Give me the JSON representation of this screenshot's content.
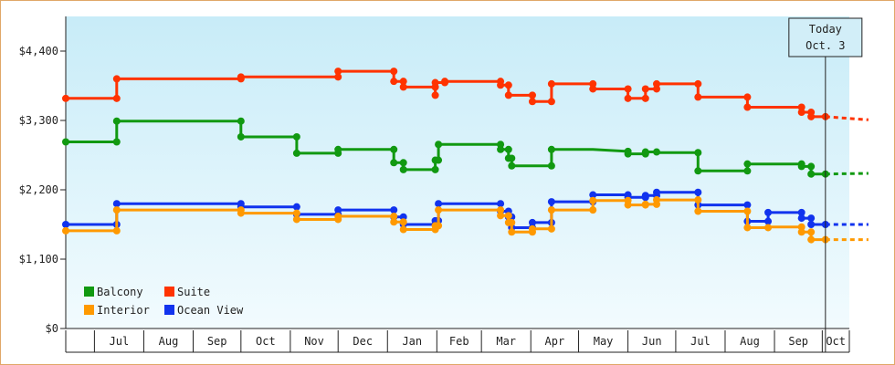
{
  "chart_data": {
    "type": "line",
    "title": "",
    "xlabel": "",
    "ylabel": "",
    "ylim": [
      0,
      4950
    ],
    "y_ticks": [
      "$0",
      "$1,100",
      "$2,200",
      "$3,300",
      "$4,400"
    ],
    "y_tick_values": [
      0,
      1100,
      2200,
      3300,
      4400
    ],
    "x_start": "2020-06-13",
    "x_end": "2021-10-18",
    "month_labels": [
      {
        "label": "Jul",
        "start": "2020-07-01",
        "end": "2020-08-01"
      },
      {
        "label": "Aug",
        "start": "2020-08-01",
        "end": "2020-09-01"
      },
      {
        "label": "Sep",
        "start": "2020-09-01",
        "end": "2020-10-01"
      },
      {
        "label": "Oct",
        "start": "2020-10-01",
        "end": "2020-11-01"
      },
      {
        "label": "Nov",
        "start": "2020-11-01",
        "end": "2020-12-01"
      },
      {
        "label": "Dec",
        "start": "2020-12-01",
        "end": "2021-01-01"
      },
      {
        "label": "Jan",
        "start": "2021-01-01",
        "end": "2021-02-01"
      },
      {
        "label": "Feb",
        "start": "2021-02-01",
        "end": "2021-03-01"
      },
      {
        "label": "Mar",
        "start": "2021-03-01",
        "end": "2021-04-01"
      },
      {
        "label": "Apr",
        "start": "2021-04-01",
        "end": "2021-05-01"
      },
      {
        "label": "May",
        "start": "2021-05-01",
        "end": "2021-06-01"
      },
      {
        "label": "Jun",
        "start": "2021-06-01",
        "end": "2021-07-01"
      },
      {
        "label": "Jul",
        "start": "2021-07-01",
        "end": "2021-08-01"
      },
      {
        "label": "Aug",
        "start": "2021-08-01",
        "end": "2021-09-01"
      },
      {
        "label": "Sep",
        "start": "2021-09-01",
        "end": "2021-10-01"
      },
      {
        "label": "Oct",
        "start": "2021-10-01",
        "end": "2021-11-01"
      }
    ],
    "today": {
      "line1": "Today",
      "line2": "Oct. 3",
      "date": "2021-10-03",
      "end": "2021-10-30"
    },
    "grid": false,
    "legend": "bottom-left",
    "series": [
      {
        "name": "Suite",
        "color": "#ff3300",
        "points": [
          [
            "2020-06-13",
            3650
          ],
          [
            "2020-07-15",
            3650
          ],
          [
            "2020-07-15",
            3960
          ],
          [
            "2020-10-01",
            3960
          ],
          [
            "2020-10-01",
            3990
          ],
          [
            "2020-10-27",
            3990
          ],
          [
            "2020-11-05",
            3990
          ],
          [
            "2020-12-01",
            3990
          ],
          [
            "2020-12-01",
            4080
          ],
          [
            "2021-01-05",
            4080
          ],
          [
            "2021-01-05",
            3920
          ],
          [
            "2021-01-11",
            3920
          ],
          [
            "2021-01-11",
            3830
          ],
          [
            "2021-01-31",
            3830
          ],
          [
            "2021-01-31",
            3700
          ],
          [
            "2021-01-31",
            3900
          ],
          [
            "2021-02-06",
            3900
          ],
          [
            "2021-02-06",
            3920
          ],
          [
            "2021-03-13",
            3920
          ],
          [
            "2021-03-13",
            3860
          ],
          [
            "2021-03-18",
            3860
          ],
          [
            "2021-03-18",
            3700
          ],
          [
            "2021-04-02",
            3700
          ],
          [
            "2021-04-02",
            3600
          ],
          [
            "2021-04-14",
            3600
          ],
          [
            "2021-04-14",
            3880
          ],
          [
            "2021-05-10",
            3880
          ],
          [
            "2021-05-10",
            3800
          ],
          [
            "2021-06-01",
            3800
          ],
          [
            "2021-06-01",
            3650
          ],
          [
            "2021-06-12",
            3650
          ],
          [
            "2021-06-12",
            3800
          ],
          [
            "2021-06-19",
            3800
          ],
          [
            "2021-06-19",
            3880
          ],
          [
            "2021-07-15",
            3880
          ],
          [
            "2021-07-15",
            3670
          ],
          [
            "2021-08-15",
            3670
          ],
          [
            "2021-08-15",
            3510
          ],
          [
            "2021-09-18",
            3510
          ],
          [
            "2021-09-18",
            3430
          ],
          [
            "2021-09-24",
            3430
          ],
          [
            "2021-09-24",
            3360
          ],
          [
            "2021-10-03",
            3360
          ]
        ],
        "future": [
          [
            "2021-10-03",
            3360
          ],
          [
            "2021-10-30",
            3310
          ]
        ]
      },
      {
        "name": "Balcony",
        "color": "#119911",
        "points": [
          [
            "2020-06-13",
            2960
          ],
          [
            "2020-07-15",
            2960
          ],
          [
            "2020-07-15",
            3290
          ],
          [
            "2020-10-01",
            3290
          ],
          [
            "2020-10-01",
            3040
          ],
          [
            "2020-10-27",
            3040
          ],
          [
            "2020-11-05",
            3040
          ],
          [
            "2020-11-05",
            2780
          ],
          [
            "2020-12-01",
            2780
          ],
          [
            "2020-12-01",
            2840
          ],
          [
            "2021-01-05",
            2840
          ],
          [
            "2021-01-05",
            2630
          ],
          [
            "2021-01-11",
            2630
          ],
          [
            "2021-01-11",
            2520
          ],
          [
            "2021-01-31",
            2520
          ],
          [
            "2021-01-31",
            2670
          ],
          [
            "2021-02-02",
            2670
          ],
          [
            "2021-02-02",
            2920
          ],
          [
            "2021-02-06",
            2920
          ],
          [
            "2021-03-13",
            2920
          ],
          [
            "2021-03-13",
            2840
          ],
          [
            "2021-03-18",
            2840
          ],
          [
            "2021-03-18",
            2700
          ],
          [
            "2021-03-20",
            2700
          ],
          [
            "2021-03-20",
            2580
          ],
          [
            "2021-04-02",
            2580
          ],
          [
            "2021-04-14",
            2580
          ],
          [
            "2021-04-14",
            2840
          ],
          [
            "2021-05-10",
            2840
          ],
          [
            "2021-06-01",
            2810
          ],
          [
            "2021-06-01",
            2770
          ],
          [
            "2021-06-12",
            2770
          ],
          [
            "2021-06-12",
            2800
          ],
          [
            "2021-06-19",
            2800
          ],
          [
            "2021-06-19",
            2790
          ],
          [
            "2021-07-15",
            2790
          ],
          [
            "2021-07-15",
            2500
          ],
          [
            "2021-08-15",
            2500
          ],
          [
            "2021-08-15",
            2610
          ],
          [
            "2021-09-18",
            2610
          ],
          [
            "2021-09-18",
            2570
          ],
          [
            "2021-09-24",
            2570
          ],
          [
            "2021-09-24",
            2450
          ],
          [
            "2021-10-03",
            2450
          ]
        ],
        "future": [
          [
            "2021-10-03",
            2450
          ],
          [
            "2021-10-30",
            2460
          ]
        ]
      },
      {
        "name": "Ocean View",
        "color": "#1133ee",
        "points": [
          [
            "2020-06-13",
            1650
          ],
          [
            "2020-07-15",
            1650
          ],
          [
            "2020-07-15",
            1980
          ],
          [
            "2020-10-01",
            1980
          ],
          [
            "2020-10-01",
            1930
          ],
          [
            "2020-10-27",
            1930
          ],
          [
            "2020-11-05",
            1930
          ],
          [
            "2020-11-05",
            1810
          ],
          [
            "2020-12-01",
            1810
          ],
          [
            "2020-12-01",
            1880
          ],
          [
            "2021-01-05",
            1880
          ],
          [
            "2021-01-05",
            1770
          ],
          [
            "2021-01-11",
            1770
          ],
          [
            "2021-01-11",
            1650
          ],
          [
            "2021-01-31",
            1650
          ],
          [
            "2021-01-31",
            1710
          ],
          [
            "2021-02-02",
            1710
          ],
          [
            "2021-02-02",
            1980
          ],
          [
            "2021-02-06",
            1980
          ],
          [
            "2021-03-13",
            1980
          ],
          [
            "2021-03-13",
            1860
          ],
          [
            "2021-03-18",
            1860
          ],
          [
            "2021-03-18",
            1770
          ],
          [
            "2021-03-20",
            1770
          ],
          [
            "2021-03-20",
            1600
          ],
          [
            "2021-04-02",
            1600
          ],
          [
            "2021-04-02",
            1680
          ],
          [
            "2021-04-14",
            1680
          ],
          [
            "2021-04-14",
            2010
          ],
          [
            "2021-05-10",
            2010
          ],
          [
            "2021-05-10",
            2120
          ],
          [
            "2021-06-01",
            2120
          ],
          [
            "2021-06-01",
            2080
          ],
          [
            "2021-06-12",
            2080
          ],
          [
            "2021-06-12",
            2110
          ],
          [
            "2021-06-19",
            2110
          ],
          [
            "2021-06-19",
            2160
          ],
          [
            "2021-07-15",
            2160
          ],
          [
            "2021-07-15",
            1960
          ],
          [
            "2021-08-15",
            1960
          ],
          [
            "2021-08-15",
            1700
          ],
          [
            "2021-08-28",
            1700
          ],
          [
            "2021-08-28",
            1840
          ],
          [
            "2021-09-18",
            1840
          ],
          [
            "2021-09-18",
            1750
          ],
          [
            "2021-09-24",
            1750
          ],
          [
            "2021-09-24",
            1650
          ],
          [
            "2021-10-03",
            1650
          ]
        ],
        "future": [
          [
            "2021-10-03",
            1650
          ],
          [
            "2021-10-30",
            1650
          ]
        ]
      },
      {
        "name": "Interior",
        "color": "#ff9900",
        "points": [
          [
            "2020-06-13",
            1550
          ],
          [
            "2020-07-15",
            1550
          ],
          [
            "2020-07-15",
            1880
          ],
          [
            "2020-10-01",
            1880
          ],
          [
            "2020-10-01",
            1830
          ],
          [
            "2020-10-27",
            1830
          ],
          [
            "2020-11-05",
            1830
          ],
          [
            "2020-11-05",
            1730
          ],
          [
            "2020-12-01",
            1730
          ],
          [
            "2020-12-01",
            1780
          ],
          [
            "2021-01-05",
            1780
          ],
          [
            "2021-01-05",
            1690
          ],
          [
            "2021-01-11",
            1690
          ],
          [
            "2021-01-11",
            1570
          ],
          [
            "2021-01-31",
            1570
          ],
          [
            "2021-01-31",
            1630
          ],
          [
            "2021-02-02",
            1630
          ],
          [
            "2021-02-02",
            1880
          ],
          [
            "2021-02-06",
            1880
          ],
          [
            "2021-03-13",
            1880
          ],
          [
            "2021-03-13",
            1790
          ],
          [
            "2021-03-18",
            1790
          ],
          [
            "2021-03-18",
            1680
          ],
          [
            "2021-03-20",
            1680
          ],
          [
            "2021-03-20",
            1530
          ],
          [
            "2021-04-02",
            1530
          ],
          [
            "2021-04-02",
            1580
          ],
          [
            "2021-04-14",
            1580
          ],
          [
            "2021-04-14",
            1880
          ],
          [
            "2021-05-10",
            1880
          ],
          [
            "2021-05-10",
            2030
          ],
          [
            "2021-06-01",
            2030
          ],
          [
            "2021-06-01",
            1960
          ],
          [
            "2021-06-12",
            1960
          ],
          [
            "2021-06-12",
            1970
          ],
          [
            "2021-06-19",
            1970
          ],
          [
            "2021-06-19",
            2040
          ],
          [
            "2021-07-15",
            2040
          ],
          [
            "2021-07-15",
            1860
          ],
          [
            "2021-08-15",
            1860
          ],
          [
            "2021-08-15",
            1600
          ],
          [
            "2021-08-28",
            1600
          ],
          [
            "2021-08-28",
            1610
          ],
          [
            "2021-09-18",
            1610
          ],
          [
            "2021-09-18",
            1530
          ],
          [
            "2021-09-24",
            1530
          ],
          [
            "2021-09-24",
            1410
          ],
          [
            "2021-10-03",
            1410
          ]
        ],
        "future": [
          [
            "2021-10-03",
            1410
          ],
          [
            "2021-10-30",
            1410
          ]
        ]
      }
    ],
    "legend_entries": [
      {
        "label": "Balcony",
        "color": "#119911"
      },
      {
        "label": "Suite",
        "color": "#ff3300"
      },
      {
        "label": "Interior",
        "color": "#ff9900"
      },
      {
        "label": "Ocean View",
        "color": "#1133ee"
      }
    ]
  }
}
